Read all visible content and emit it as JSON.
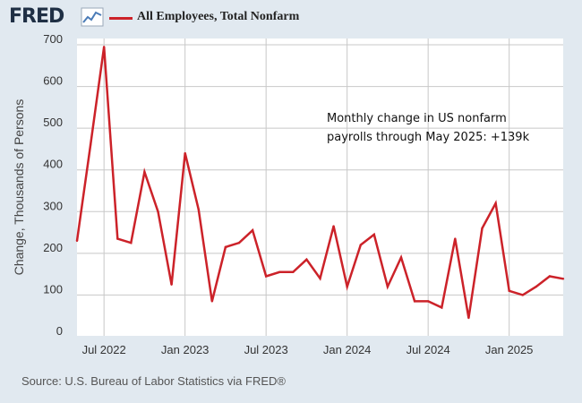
{
  "header": {
    "logo_text": "FRED",
    "logo_icon": "line-chart-icon",
    "legend_label": "All Employees, Total Nonfarm",
    "legend_color": "#cc2229"
  },
  "source": "Source: U.S. Bureau of Labor Statistics via FRED®",
  "chart_data": {
    "type": "line",
    "ylabel": "Change, Thousands of Persons",
    "xlabel": "",
    "ylim": [
      0,
      700
    ],
    "yticks": [
      0,
      100,
      200,
      300,
      400,
      500,
      600,
      700
    ],
    "xticks": [
      {
        "label": "Jul 2022",
        "date": "2022-07"
      },
      {
        "label": "Jan 2023",
        "date": "2023-01"
      },
      {
        "label": "Jul 2023",
        "date": "2023-07"
      },
      {
        "label": "Jan 2024",
        "date": "2024-01"
      },
      {
        "label": "Jul 2024",
        "date": "2024-07"
      },
      {
        "label": "Jan 2025",
        "date": "2025-01"
      }
    ],
    "grid": true,
    "annotation": "Monthly change in US nonfarm payrolls through May 2025: +139k",
    "series": [
      {
        "name": "All Employees, Total Nonfarm",
        "color": "#cc2229",
        "x": [
          "2022-05",
          "2022-06",
          "2022-07",
          "2022-08",
          "2022-09",
          "2022-10",
          "2022-11",
          "2022-12",
          "2023-01",
          "2023-02",
          "2023-03",
          "2023-04",
          "2023-05",
          "2023-06",
          "2023-07",
          "2023-08",
          "2023-09",
          "2023-10",
          "2023-11",
          "2023-12",
          "2024-01",
          "2024-02",
          "2024-03",
          "2024-04",
          "2024-05",
          "2024-06",
          "2024-07",
          "2024-08",
          "2024-09",
          "2024-10",
          "2024-11",
          "2024-12",
          "2025-01",
          "2025-02",
          "2025-03",
          "2025-04",
          "2025-05"
        ],
        "values": [
          230,
          460,
          695,
          235,
          225,
          395,
          300,
          125,
          440,
          305,
          85,
          215,
          225,
          255,
          145,
          155,
          155,
          185,
          140,
          265,
          120,
          220,
          245,
          120,
          190,
          85,
          85,
          70,
          235,
          45,
          260,
          320,
          110,
          100,
          120,
          145,
          139
        ]
      }
    ]
  }
}
